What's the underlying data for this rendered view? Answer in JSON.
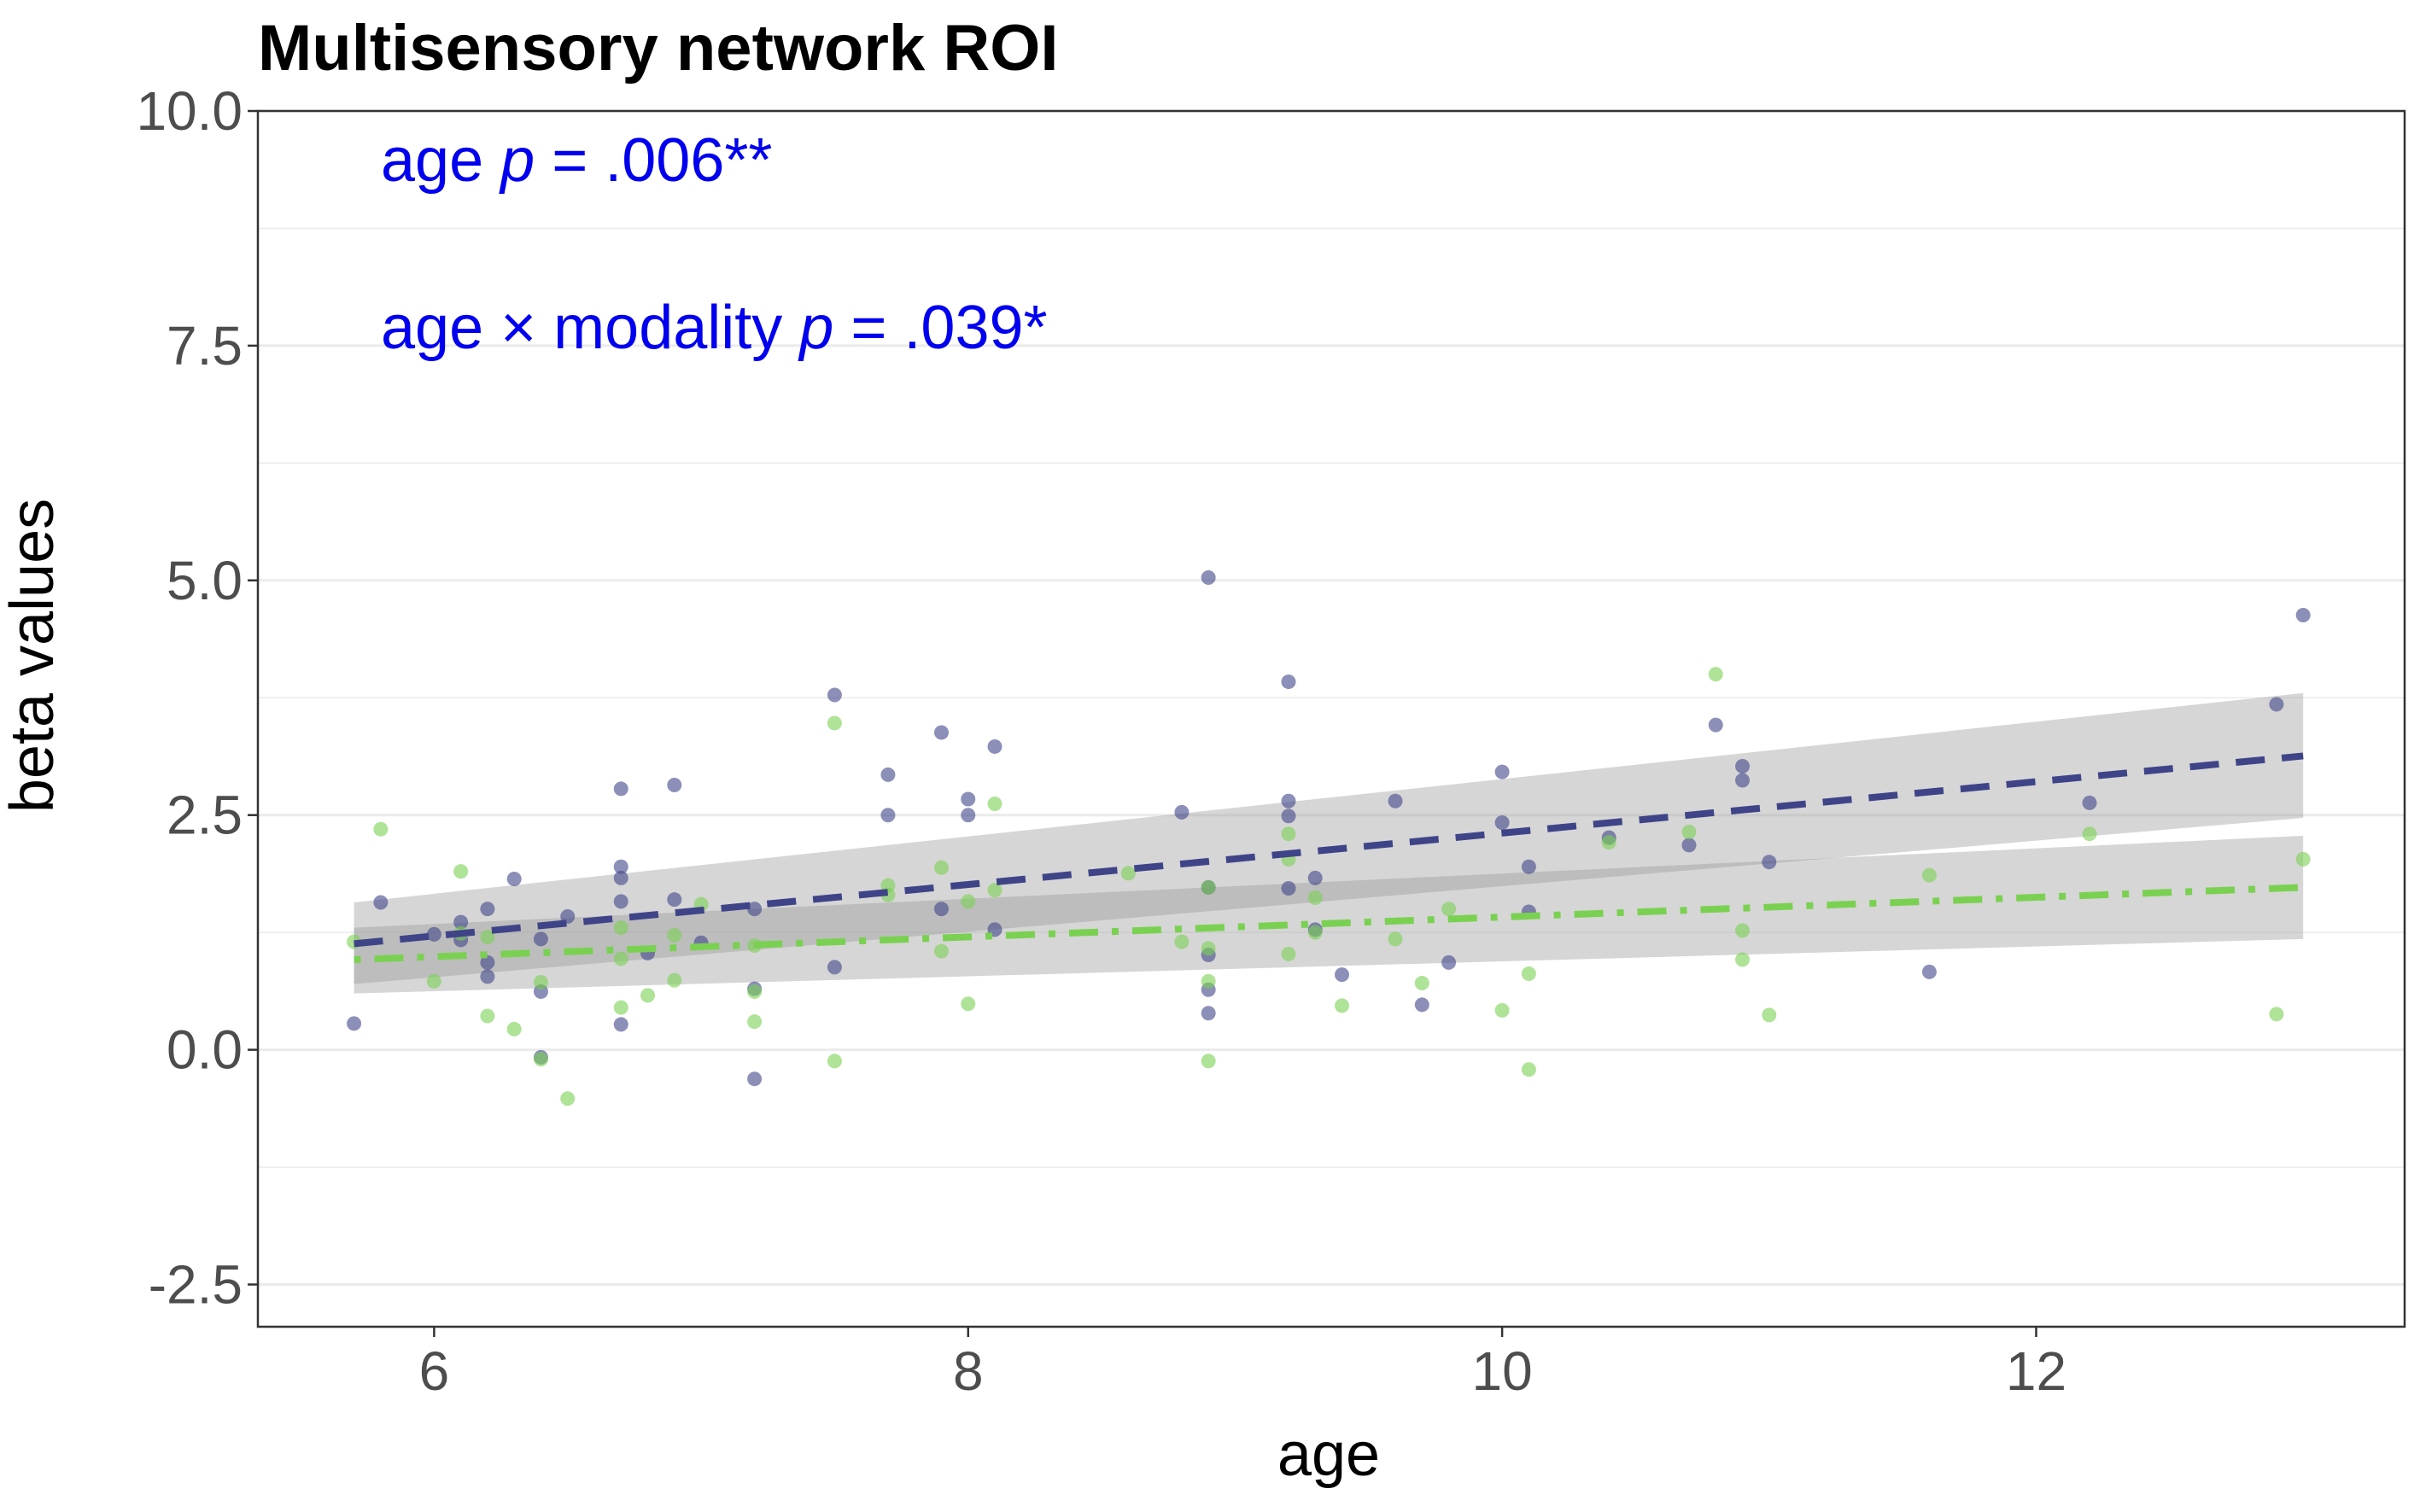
{
  "chart_data": {
    "type": "scatter",
    "title": "Multisensory network ROI",
    "xlabel": "age",
    "ylabel": "beta values",
    "xlim": [
      5.34,
      13.38
    ],
    "ylim": [
      -2.95,
      10.0
    ],
    "xticks": [
      6,
      8,
      10,
      12
    ],
    "xtick_labels": [
      "6",
      "8",
      "10",
      "12"
    ],
    "yticks": [
      -2.5,
      0.0,
      2.5,
      5.0,
      7.5,
      10.0
    ],
    "ytick_labels": [
      "-2.5",
      "0.0",
      "2.5",
      "5.0",
      "7.5",
      "10.0"
    ],
    "grid": true,
    "annotations": [
      {
        "prefix": "age ",
        "p": "p",
        "suffix": " = .006**",
        "color": "#0000ee"
      },
      {
        "prefix": "age × modality ",
        "p": "p",
        "suffix": " = .039*",
        "color": "#0000ee"
      }
    ],
    "series": [
      {
        "color": "#3f4488",
        "line_style": "dashed",
        "fit": {
          "x": [
            5.7,
            13.0
          ],
          "y": [
            1.13,
            3.13
          ]
        },
        "ci": {
          "x": [
            5.7,
            13.0
          ],
          "lower": [
            0.7,
            2.47
          ],
          "upper": [
            1.57,
            3.8
          ]
        },
        "points": [
          [
            5.7,
            0.28
          ],
          [
            5.8,
            1.57
          ],
          [
            6.0,
            1.23
          ],
          [
            6.1,
            1.36
          ],
          [
            6.1,
            1.17
          ],
          [
            6.2,
            1.5
          ],
          [
            6.2,
            0.93
          ],
          [
            6.2,
            0.78
          ],
          [
            6.3,
            1.82
          ],
          [
            6.4,
            1.18
          ],
          [
            6.4,
            0.62
          ],
          [
            6.4,
            -0.08
          ],
          [
            6.5,
            1.42
          ],
          [
            6.7,
            2.78
          ],
          [
            6.7,
            1.95
          ],
          [
            6.7,
            1.83
          ],
          [
            6.7,
            1.58
          ],
          [
            6.7,
            0.27
          ],
          [
            6.8,
            1.03
          ],
          [
            6.9,
            2.82
          ],
          [
            6.9,
            1.6
          ],
          [
            7.0,
            1.14
          ],
          [
            7.2,
            1.5
          ],
          [
            7.2,
            0.65
          ],
          [
            7.2,
            -0.31
          ],
          [
            7.5,
            3.78
          ],
          [
            7.5,
            0.88
          ],
          [
            7.7,
            2.93
          ],
          [
            7.7,
            2.5
          ],
          [
            7.9,
            3.38
          ],
          [
            7.9,
            1.5
          ],
          [
            8.0,
            2.67
          ],
          [
            8.0,
            2.5
          ],
          [
            8.1,
            3.23
          ],
          [
            8.1,
            1.28
          ],
          [
            8.8,
            2.53
          ],
          [
            8.9,
            5.03
          ],
          [
            8.9,
            1.73
          ],
          [
            8.9,
            1.01
          ],
          [
            8.9,
            0.64
          ],
          [
            8.9,
            0.39
          ],
          [
            9.2,
            3.92
          ],
          [
            9.2,
            2.65
          ],
          [
            9.2,
            2.49
          ],
          [
            9.2,
            1.72
          ],
          [
            9.3,
            1.83
          ],
          [
            9.3,
            1.28
          ],
          [
            9.4,
            0.8
          ],
          [
            9.6,
            2.65
          ],
          [
            9.7,
            0.48
          ],
          [
            9.8,
            0.93
          ],
          [
            10.0,
            2.96
          ],
          [
            10.0,
            2.42
          ],
          [
            10.1,
            1.95
          ],
          [
            10.1,
            1.47
          ],
          [
            10.4,
            2.26
          ],
          [
            10.7,
            2.18
          ],
          [
            10.8,
            3.46
          ],
          [
            10.9,
            3.02
          ],
          [
            10.9,
            2.87
          ],
          [
            11.0,
            2.0
          ],
          [
            11.6,
            0.83
          ],
          [
            12.2,
            2.63
          ],
          [
            12.9,
            3.68
          ],
          [
            13.0,
            4.63
          ]
        ]
      },
      {
        "color": "#7ad151",
        "line_style": "dotdash",
        "fit": {
          "x": [
            5.7,
            13.0
          ],
          "y": [
            0.96,
            1.73
          ]
        },
        "ci": {
          "x": [
            5.7,
            13.0
          ],
          "lower": [
            0.6,
            1.18
          ],
          "upper": [
            1.3,
            2.28
          ]
        },
        "points": [
          [
            5.7,
            1.15
          ],
          [
            5.8,
            2.35
          ],
          [
            6.0,
            0.73
          ],
          [
            6.1,
            1.9
          ],
          [
            6.1,
            1.24
          ],
          [
            6.2,
            1.2
          ],
          [
            6.2,
            0.36
          ],
          [
            6.3,
            0.22
          ],
          [
            6.4,
            0.72
          ],
          [
            6.4,
            -0.1
          ],
          [
            6.5,
            -0.52
          ],
          [
            6.7,
            1.3
          ],
          [
            6.7,
            0.97
          ],
          [
            6.7,
            0.45
          ],
          [
            6.8,
            0.58
          ],
          [
            6.9,
            1.22
          ],
          [
            6.9,
            0.74
          ],
          [
            7.0,
            1.55
          ],
          [
            7.2,
            1.11
          ],
          [
            7.2,
            0.62
          ],
          [
            7.2,
            0.3
          ],
          [
            7.5,
            3.48
          ],
          [
            7.5,
            -0.12
          ],
          [
            7.7,
            1.75
          ],
          [
            7.7,
            1.65
          ],
          [
            7.9,
            1.94
          ],
          [
            7.9,
            1.05
          ],
          [
            8.0,
            1.58
          ],
          [
            8.0,
            0.49
          ],
          [
            8.1,
            2.62
          ],
          [
            8.1,
            1.7
          ],
          [
            8.6,
            1.88
          ],
          [
            8.8,
            1.15
          ],
          [
            8.9,
            1.73
          ],
          [
            8.9,
            1.08
          ],
          [
            8.9,
            0.73
          ],
          [
            8.9,
            -0.12
          ],
          [
            9.2,
            2.3
          ],
          [
            9.2,
            2.03
          ],
          [
            9.2,
            1.02
          ],
          [
            9.3,
            1.62
          ],
          [
            9.3,
            1.25
          ],
          [
            9.4,
            0.47
          ],
          [
            9.6,
            1.18
          ],
          [
            9.7,
            0.71
          ],
          [
            9.8,
            1.5
          ],
          [
            10.0,
            0.42
          ],
          [
            10.1,
            0.81
          ],
          [
            10.1,
            -0.21
          ],
          [
            10.4,
            2.21
          ],
          [
            10.7,
            2.32
          ],
          [
            10.8,
            4.0
          ],
          [
            10.9,
            1.27
          ],
          [
            10.9,
            0.96
          ],
          [
            11.0,
            0.37
          ],
          [
            11.6,
            1.86
          ],
          [
            12.2,
            2.3
          ],
          [
            12.9,
            0.38
          ],
          [
            13.0,
            2.03
          ]
        ]
      }
    ]
  }
}
